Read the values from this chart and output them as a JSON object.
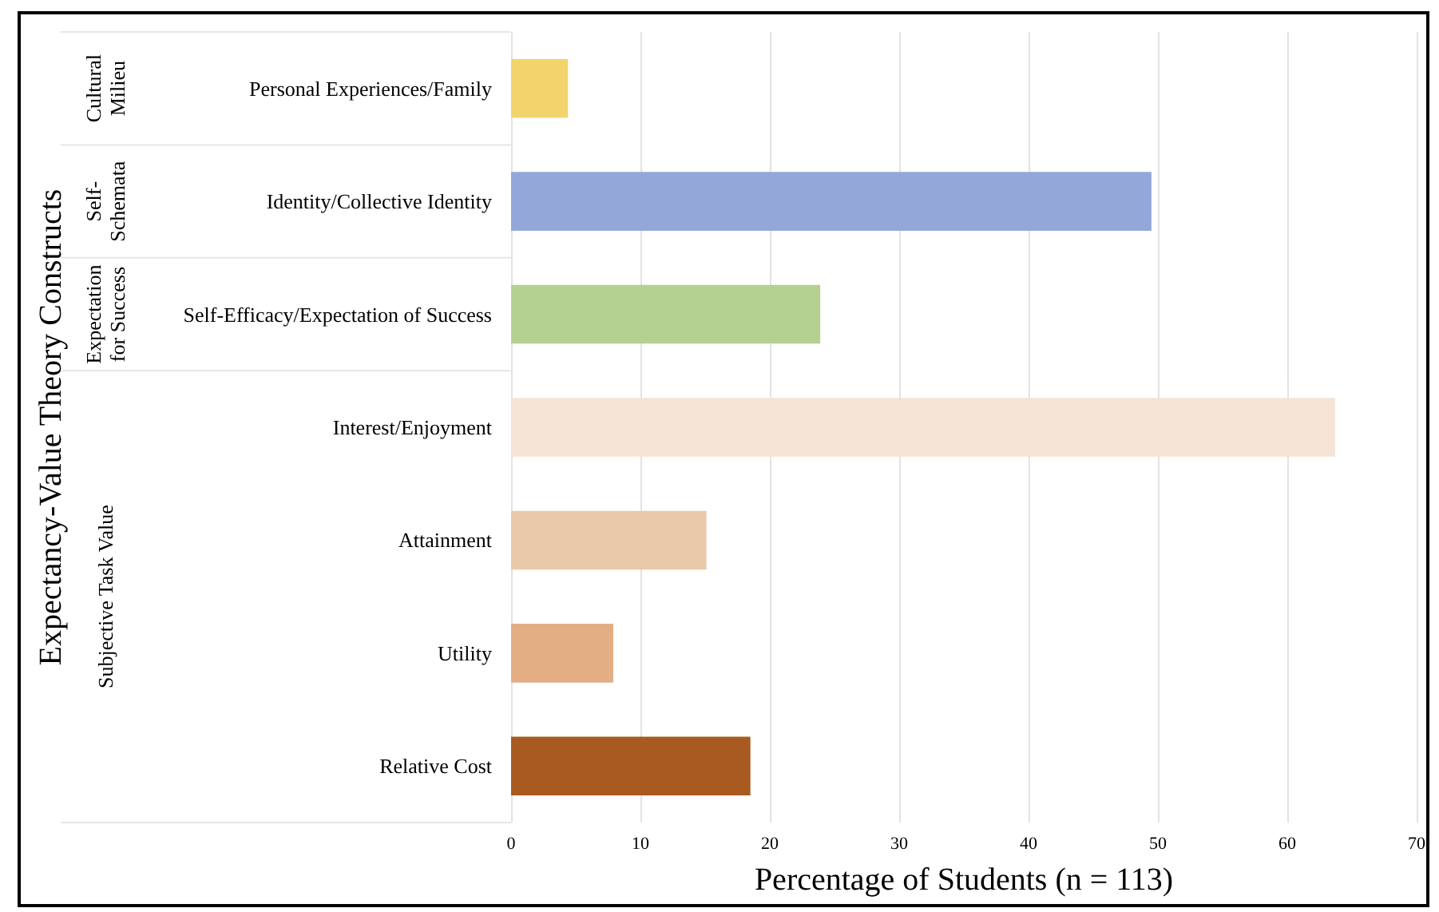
{
  "chart_data": {
    "type": "bar",
    "orientation": "horizontal",
    "ylabel": "Expectancy-Value Theory Constructs",
    "xlabel": "Percentage of Students (n = 113)",
    "categories": [
      "Personal Experiences/Family",
      "Identity/Collective Identity",
      "Self-Efficacy/Expectation of Success",
      "Interest/Enjoyment",
      "Attainment",
      "Utility",
      "Relative Cost"
    ],
    "values": [
      4.4,
      49.5,
      23.9,
      63.7,
      15.1,
      7.9,
      18.5
    ],
    "colors": [
      "#f3d46c",
      "#94a7d9",
      "#b4d190",
      "#f5e3d6",
      "#eac8aa",
      "#e3ae84",
      "#a85a20"
    ],
    "xlim": [
      0,
      70
    ],
    "xticks": [
      0,
      10,
      20,
      30,
      40,
      50,
      60,
      70
    ],
    "grid": "x",
    "annotations": [
      "Cultural\nMilieu",
      "Self-\nSchemata",
      "Expectation\nfor Success",
      "Subjective Task Value"
    ]
  }
}
